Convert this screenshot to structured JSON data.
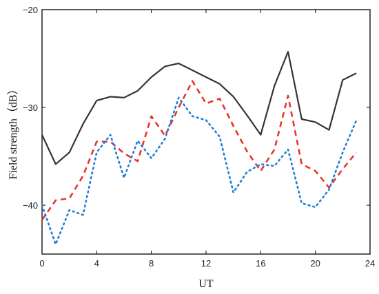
{
  "chart_data": {
    "type": "line",
    "title": "",
    "xlabel": "UT",
    "ylabel": "Field strength（dB）",
    "xlim": [
      0,
      24
    ],
    "ylim": [
      -45,
      -20
    ],
    "x_ticks": [
      0,
      4,
      8,
      12,
      16,
      20,
      24
    ],
    "y_ticks": [
      -20,
      -30,
      -40
    ],
    "grid": false,
    "legend": "none",
    "series": [
      {
        "color": "#333333",
        "style": "solid",
        "x": [
          0,
          1,
          2,
          3,
          4,
          5,
          6,
          7,
          8,
          9,
          10,
          11,
          12,
          13,
          14,
          15,
          16,
          17,
          18,
          19,
          20,
          21,
          22,
          23
        ],
        "values": [
          -32.8,
          -35.8,
          -34.6,
          -31.7,
          -29.3,
          -28.9,
          -29.0,
          -28.3,
          -26.9,
          -25.8,
          -25.5,
          -26.2,
          -26.9,
          -27.6,
          -28.9,
          -30.8,
          -32.8,
          -27.8,
          -24.3,
          -31.2,
          -31.5,
          -32.3,
          -27.2,
          -26.5
        ]
      },
      {
        "color": "#e8352b",
        "style": "dashed",
        "x": [
          0,
          1,
          2,
          3,
          4,
          5,
          6,
          7,
          8,
          9,
          10,
          11,
          12,
          13,
          14,
          15,
          16,
          17,
          18,
          19,
          20,
          21,
          22,
          23
        ],
        "values": [
          -41.5,
          -39.5,
          -39.3,
          -37.0,
          -33.5,
          -33.5,
          -34.7,
          -35.5,
          -30.9,
          -32.9,
          -30.0,
          -27.3,
          -29.6,
          -29.1,
          -31.9,
          -34.5,
          -36.5,
          -34.3,
          -28.8,
          -35.8,
          -36.5,
          -38.2,
          -36.3,
          -34.6
        ]
      },
      {
        "color": "#1f7fd8",
        "style": "dotted",
        "x": [
          0,
          1,
          2,
          3,
          4,
          5,
          6,
          7,
          8,
          9,
          10,
          11,
          12,
          13,
          14,
          15,
          16,
          17,
          18,
          19,
          20,
          21,
          22,
          23
        ],
        "values": [
          -40.0,
          -44.0,
          -40.5,
          -41.0,
          -34.6,
          -32.8,
          -37.2,
          -33.4,
          -35.2,
          -33.2,
          -29.0,
          -30.9,
          -31.3,
          -33.0,
          -38.7,
          -36.6,
          -35.8,
          -36.0,
          -34.3,
          -39.8,
          -40.2,
          -38.4,
          -34.6,
          -31.3
        ]
      }
    ]
  }
}
